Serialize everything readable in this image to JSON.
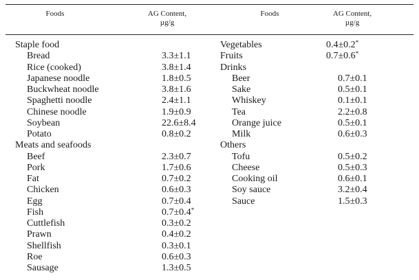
{
  "header": {
    "col1": "Foods",
    "col2_line1": "AG Content,",
    "col2_line2": "µg/g",
    "col3": "Foods",
    "col4_line1": "AG Content,",
    "col4_line2": "µg/g"
  },
  "left_rows": [
    {
      "name": "Staple food",
      "value": "",
      "sub": false,
      "star": false
    },
    {
      "name": "Bread",
      "value": "3.3±1.1",
      "sub": true,
      "star": false
    },
    {
      "name": "Rice (cooked)",
      "value": "3.8±1.4",
      "sub": true,
      "star": false
    },
    {
      "name": "Japanese noodle",
      "value": "1.8±0.5",
      "sub": true,
      "star": false
    },
    {
      "name": "Buckwheat noodle",
      "value": "3.8±1.6",
      "sub": true,
      "star": false
    },
    {
      "name": "Spaghetti noodle",
      "value": "2.4±1.1",
      "sub": true,
      "star": false
    },
    {
      "name": "Chinese noodle",
      "value": "1.9±0.9",
      "sub": true,
      "star": false
    },
    {
      "name": "Soybean",
      "value": "22.6±8.4",
      "sub": true,
      "star": false
    },
    {
      "name": "Potato",
      "value": "0.8±0.2",
      "sub": true,
      "star": false
    },
    {
      "name": "Meats and seafoods",
      "value": "",
      "sub": false,
      "star": false
    },
    {
      "name": "Beef",
      "value": "2.3±0.7",
      "sub": true,
      "star": false
    },
    {
      "name": "Pork",
      "value": "1.7±0.6",
      "sub": true,
      "star": false
    },
    {
      "name": "Fat",
      "value": "0.7±0.2",
      "sub": true,
      "star": false
    },
    {
      "name": "Chicken",
      "value": "0.6±0.3",
      "sub": true,
      "star": false
    },
    {
      "name": "Egg",
      "value": "0.7±0.4",
      "sub": true,
      "star": false
    },
    {
      "name": "Fish",
      "value": "0.7±0.4",
      "sub": true,
      "star": true
    },
    {
      "name": "Cuttlefish",
      "value": "0.3±0.2",
      "sub": true,
      "star": false
    },
    {
      "name": "Prawn",
      "value": "0.4±0.2",
      "sub": true,
      "star": false
    },
    {
      "name": "Shellfish",
      "value": "0.3±0.1",
      "sub": true,
      "star": false
    },
    {
      "name": "Roe",
      "value": "0.6±0.3",
      "sub": true,
      "star": false
    },
    {
      "name": "Sausage",
      "value": "1.3±0.5",
      "sub": true,
      "star": false
    }
  ],
  "right_rows": [
    {
      "name": "Vegetables",
      "value": "0.4±0.2",
      "sub": false,
      "star": true
    },
    {
      "name": "Fruits",
      "value": "0.7±0.6",
      "sub": false,
      "star": true
    },
    {
      "name": "Drinks",
      "value": "",
      "sub": false,
      "star": false
    },
    {
      "name": "Beer",
      "value": "0.7±0.1",
      "sub": true,
      "star": false
    },
    {
      "name": "Sake",
      "value": "0.5±0.1",
      "sub": true,
      "star": false
    },
    {
      "name": "Whiskey",
      "value": "0.1±0.1",
      "sub": true,
      "star": false
    },
    {
      "name": "Tea",
      "value": "2.2±0.8",
      "sub": true,
      "star": false
    },
    {
      "name": "Orange juice",
      "value": "0.5±0.1",
      "sub": true,
      "star": false
    },
    {
      "name": "Milk",
      "value": "0.6±0.3",
      "sub": true,
      "star": false
    },
    {
      "name": "Others",
      "value": "",
      "sub": false,
      "star": false
    },
    {
      "name": "Tofu",
      "value": "0.5±0.2",
      "sub": true,
      "star": false
    },
    {
      "name": "Cheese",
      "value": "0.5±0.3",
      "sub": true,
      "star": false
    },
    {
      "name": "Cooking oil",
      "value": "0.6±0.1",
      "sub": true,
      "star": false
    },
    {
      "name": "Soy sauce",
      "value": "3.2±0.4",
      "sub": true,
      "star": false
    },
    {
      "name": "Sauce",
      "value": "1.5±0.3",
      "sub": true,
      "star": false
    }
  ],
  "star_symbol": "*"
}
